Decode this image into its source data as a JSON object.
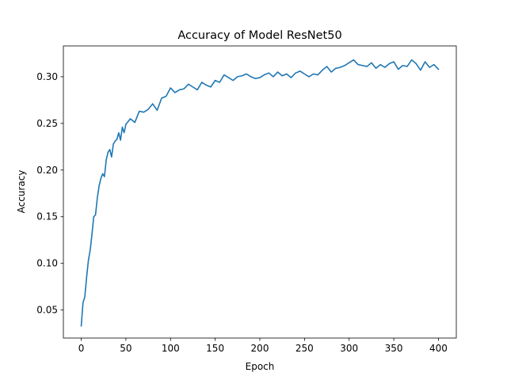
{
  "chart_data": {
    "type": "line",
    "title": "Accuracy of Model ResNet50",
    "xlabel": "Epoch",
    "ylabel": "Accuracy",
    "xlim": [
      -20,
      420
    ],
    "ylim": [
      0.02,
      0.333
    ],
    "x_ticks": [
      0,
      50,
      100,
      150,
      200,
      250,
      300,
      350,
      400
    ],
    "y_ticks": [
      0.05,
      0.1,
      0.15,
      0.2,
      0.25,
      0.3
    ],
    "x_tick_labels": [
      "0",
      "50",
      "100",
      "150",
      "200",
      "250",
      "300",
      "350",
      "400"
    ],
    "y_tick_labels": [
      "0.05",
      "0.10",
      "0.15",
      "0.20",
      "0.25",
      "0.30"
    ],
    "grid": false,
    "legend": "none",
    "line_color": "#1f77b4",
    "series": [
      {
        "x": [
          0,
          2,
          4,
          6,
          8,
          10,
          12,
          14,
          16,
          18,
          20,
          22,
          24,
          26,
          28,
          30,
          32,
          34,
          36,
          38,
          40,
          42,
          44,
          46,
          48,
          50,
          55,
          60,
          65,
          70,
          75,
          80,
          85,
          90,
          95,
          100,
          105,
          110,
          115,
          120,
          125,
          130,
          135,
          140,
          145,
          150,
          155,
          160,
          165,
          170,
          175,
          180,
          185,
          190,
          195,
          200,
          205,
          210,
          215,
          220,
          225,
          230,
          235,
          240,
          245,
          250,
          255,
          260,
          265,
          270,
          275,
          280,
          285,
          290,
          295,
          300,
          305,
          310,
          315,
          320,
          325,
          330,
          335,
          340,
          345,
          350,
          355,
          360,
          365,
          370,
          375,
          380,
          385,
          390,
          395,
          400
        ],
        "values": [
          0.033,
          0.058,
          0.064,
          0.085,
          0.103,
          0.114,
          0.131,
          0.15,
          0.152,
          0.17,
          0.183,
          0.191,
          0.196,
          0.193,
          0.211,
          0.219,
          0.222,
          0.214,
          0.228,
          0.231,
          0.233,
          0.24,
          0.232,
          0.246,
          0.24,
          0.249,
          0.255,
          0.251,
          0.263,
          0.262,
          0.265,
          0.271,
          0.264,
          0.277,
          0.279,
          0.288,
          0.283,
          0.286,
          0.287,
          0.292,
          0.289,
          0.286,
          0.294,
          0.291,
          0.289,
          0.296,
          0.294,
          0.302,
          0.299,
          0.296,
          0.3,
          0.301,
          0.303,
          0.3,
          0.298,
          0.299,
          0.302,
          0.304,
          0.3,
          0.305,
          0.301,
          0.303,
          0.299,
          0.304,
          0.306,
          0.303,
          0.3,
          0.303,
          0.302,
          0.307,
          0.311,
          0.305,
          0.309,
          0.31,
          0.312,
          0.315,
          0.318,
          0.313,
          0.312,
          0.311,
          0.315,
          0.309,
          0.313,
          0.31,
          0.314,
          0.316,
          0.308,
          0.312,
          0.311,
          0.318,
          0.314,
          0.307,
          0.316,
          0.31,
          0.313,
          0.308
        ]
      }
    ]
  }
}
